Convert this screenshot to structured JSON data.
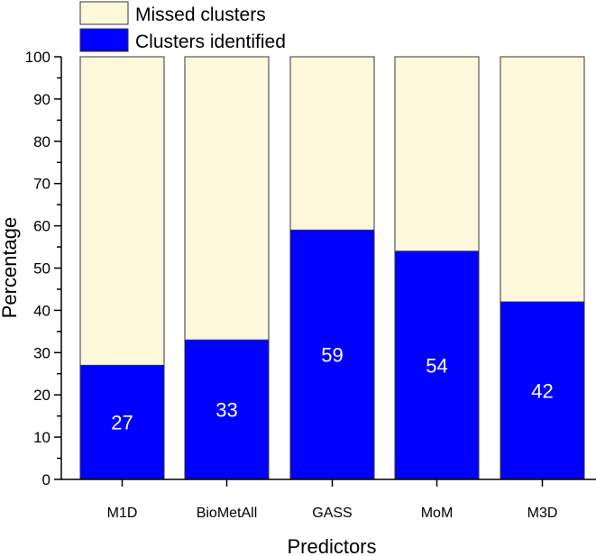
{
  "chart_data": {
    "type": "bar",
    "stacked": true,
    "categories": [
      "M1D",
      "BioMetAll",
      "GASS",
      "MoM",
      "M3D"
    ],
    "series": [
      {
        "name": "Clusters identified",
        "values": [
          27,
          33,
          59,
          54,
          42
        ],
        "color": "#0000FF"
      },
      {
        "name": "Missed clusters",
        "values": [
          73,
          67,
          41,
          46,
          58
        ],
        "color": "#FDF8DC"
      }
    ],
    "data_labels": [
      "27",
      "33",
      "59",
      "54",
      "42"
    ],
    "xlabel": "Predictors",
    "ylabel": "Percentage",
    "ylim": [
      0,
      100
    ],
    "yticks": [
      0,
      10,
      20,
      30,
      40,
      50,
      60,
      70,
      80,
      90,
      100
    ],
    "legend": {
      "placement": "top-left",
      "entries": [
        "Missed clusters",
        "Clusters identified"
      ]
    },
    "grid": false
  }
}
